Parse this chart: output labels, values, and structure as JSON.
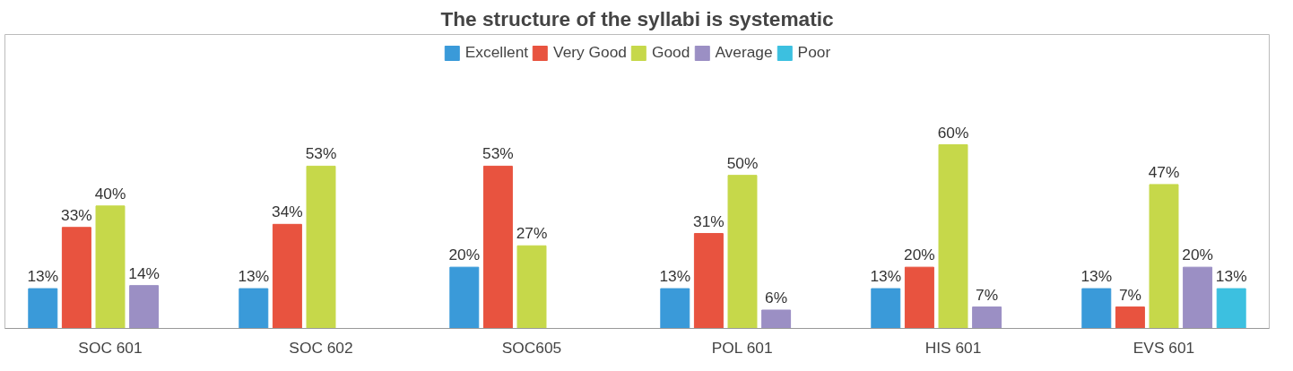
{
  "chart_data": {
    "type": "bar",
    "title": "The structure of the syllabi is systematic",
    "categories": [
      "SOC 601",
      "SOC 602",
      "SOC605",
      "POL 601",
      "HIS 601",
      "EVS 601"
    ],
    "series": [
      {
        "name": "Excellent",
        "color": "#3a9ad9",
        "values": [
          13,
          13,
          20,
          13,
          13,
          13
        ],
        "value_labels": [
          "13%",
          "13%",
          "20%",
          "13%",
          "13%",
          "13%"
        ]
      },
      {
        "name": "Very Good",
        "color": "#e8533f",
        "values": [
          33,
          34,
          53,
          31,
          20,
          7
        ],
        "value_labels": [
          "33%",
          "34%",
          "53%",
          "31%",
          "20%",
          "7%"
        ]
      },
      {
        "name": "Good",
        "color": "#c6d84a",
        "values": [
          40,
          53,
          27,
          50,
          60,
          47
        ],
        "value_labels": [
          "40%",
          "53%",
          "27%",
          "50%",
          "60%",
          "47%"
        ]
      },
      {
        "name": "Average",
        "color": "#9b8fc4",
        "values": [
          14,
          null,
          null,
          6,
          7,
          20
        ],
        "value_labels": [
          "14%",
          null,
          null,
          "6%",
          "7%",
          "20%"
        ]
      },
      {
        "name": "Poor",
        "color": "#3cc0e0",
        "values": [
          null,
          null,
          null,
          null,
          null,
          13
        ],
        "value_labels": [
          null,
          null,
          null,
          null,
          null,
          "13%"
        ]
      }
    ],
    "legend": "top"
  }
}
